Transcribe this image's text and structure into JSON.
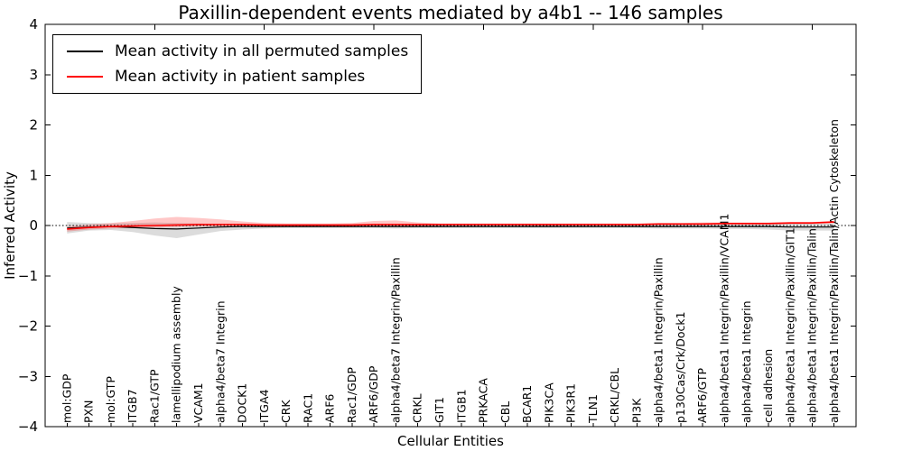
{
  "chart_data": {
    "type": "line",
    "title": "Paxillin-dependent events mediated by a4b1 -- 146 samples",
    "xlabel": "Cellular Entities",
    "ylabel": "Inferred Activity",
    "ylim": [
      -4,
      4
    ],
    "xlim": [
      0,
      37
    ],
    "yticks": [
      -4,
      -3,
      -2,
      -1,
      0,
      1,
      2,
      3,
      4
    ],
    "top_xticks": [
      5,
      10,
      15,
      20,
      25,
      30,
      35
    ],
    "zero_line": true,
    "legend_position": "upper left",
    "grid": false,
    "categories": [
      "mol:GDP",
      "PXN",
      "mol:GTP",
      "ITGB7",
      "Rac1/GTP",
      "lamellipodium assembly",
      "VCAM1",
      "alpha4/beta7 Integrin",
      "DOCK1",
      "ITGA4",
      "CRK",
      "RAC1",
      "ARF6",
      "Rac1/GDP",
      "ARF6/GDP",
      "alpha4/beta7 Integrin/Paxillin",
      "CRKL",
      "GIT1",
      "ITGB1",
      "PRKACA",
      "CBL",
      "BCAR1",
      "PIK3CA",
      "PIK3R1",
      "TLN1",
      "CRKL/CBL",
      "PI3K",
      "alpha4/beta1 Integrin/Paxillin",
      "p130Cas/Crk/Dock1",
      "ARF6/GTP",
      "alpha4/beta1 Integrin/Paxillin/VCAM1",
      "alpha4/beta1 Integrin",
      "cell adhesion",
      "alpha4/beta1 Integrin/Paxillin/GIT1",
      "alpha4/beta1 Integrin/Paxillin/Talin",
      "alpha4/beta1 Integrin/Paxillin/Talin/Actin Cytoskeleton"
    ],
    "x": [
      1,
      2,
      3,
      4,
      5,
      6,
      7,
      8,
      9,
      10,
      11,
      12,
      13,
      14,
      15,
      16,
      17,
      18,
      19,
      20,
      21,
      22,
      23,
      24,
      25,
      26,
      27,
      28,
      29,
      30,
      31,
      32,
      33,
      34,
      35,
      36
    ],
    "series": [
      {
        "name": "Mean activity in all permuted samples",
        "color": "#000000",
        "values": [
          -0.05,
          -0.03,
          -0.02,
          -0.04,
          -0.06,
          -0.07,
          -0.05,
          -0.03,
          -0.02,
          -0.02,
          -0.02,
          -0.02,
          -0.02,
          -0.02,
          -0.02,
          -0.02,
          -0.02,
          -0.02,
          -0.02,
          -0.02,
          -0.02,
          -0.02,
          -0.02,
          -0.02,
          -0.02,
          -0.02,
          -0.02,
          -0.02,
          -0.02,
          -0.02,
          -0.02,
          -0.02,
          -0.02,
          -0.03,
          -0.03,
          -0.03
        ],
        "band": {
          "color": "rgba(130,130,130,0.28)",
          "upper": [
            0.07,
            0.05,
            0.04,
            0.05,
            0.06,
            0.05,
            0.04,
            0.03,
            0.03,
            0.02,
            0.02,
            0.02,
            0.02,
            0.02,
            0.02,
            0.02,
            0.02,
            0.02,
            0.02,
            0.02,
            0.02,
            0.02,
            0.02,
            0.02,
            0.02,
            0.02,
            0.02,
            0.03,
            0.03,
            0.03,
            0.03,
            0.03,
            0.04,
            0.04,
            0.04,
            0.04
          ],
          "lower": [
            -0.16,
            -0.1,
            -0.09,
            -0.13,
            -0.2,
            -0.25,
            -0.18,
            -0.11,
            -0.08,
            -0.06,
            -0.05,
            -0.05,
            -0.05,
            -0.05,
            -0.05,
            -0.06,
            -0.05,
            -0.05,
            -0.05,
            -0.05,
            -0.05,
            -0.05,
            -0.05,
            -0.05,
            -0.05,
            -0.05,
            -0.05,
            -0.06,
            -0.06,
            -0.06,
            -0.07,
            -0.07,
            -0.08,
            -0.1,
            -0.1,
            -0.1
          ]
        }
      },
      {
        "name": "Mean activity in patient samples",
        "color": "#ff0000",
        "values": [
          -0.07,
          -0.04,
          -0.02,
          -0.01,
          0.0,
          0.01,
          0.02,
          0.02,
          0.02,
          0.01,
          0.01,
          0.01,
          0.01,
          0.01,
          0.02,
          0.02,
          0.02,
          0.02,
          0.02,
          0.02,
          0.02,
          0.02,
          0.02,
          0.02,
          0.02,
          0.02,
          0.02,
          0.03,
          0.03,
          0.03,
          0.04,
          0.04,
          0.04,
          0.05,
          0.05,
          0.07
        ],
        "band": {
          "color": "rgba(255,0,0,0.22)",
          "upper": [
            -0.02,
            0.02,
            0.05,
            0.09,
            0.14,
            0.17,
            0.15,
            0.12,
            0.08,
            0.05,
            0.04,
            0.04,
            0.04,
            0.05,
            0.09,
            0.1,
            0.06,
            0.04,
            0.04,
            0.04,
            0.04,
            0.04,
            0.04,
            0.04,
            0.04,
            0.04,
            0.04,
            0.05,
            0.05,
            0.06,
            0.06,
            0.06,
            0.06,
            0.07,
            0.07,
            0.09
          ],
          "lower": [
            -0.12,
            -0.08,
            -0.06,
            -0.05,
            -0.04,
            -0.03,
            -0.02,
            -0.02,
            -0.02,
            -0.01,
            -0.01,
            -0.01,
            -0.01,
            -0.01,
            -0.02,
            -0.03,
            -0.01,
            0.0,
            0.0,
            0.0,
            0.0,
            0.0,
            0.0,
            0.0,
            0.0,
            0.0,
            0.0,
            0.01,
            0.01,
            0.01,
            0.02,
            0.02,
            0.02,
            0.03,
            0.03,
            0.04
          ]
        }
      }
    ]
  }
}
